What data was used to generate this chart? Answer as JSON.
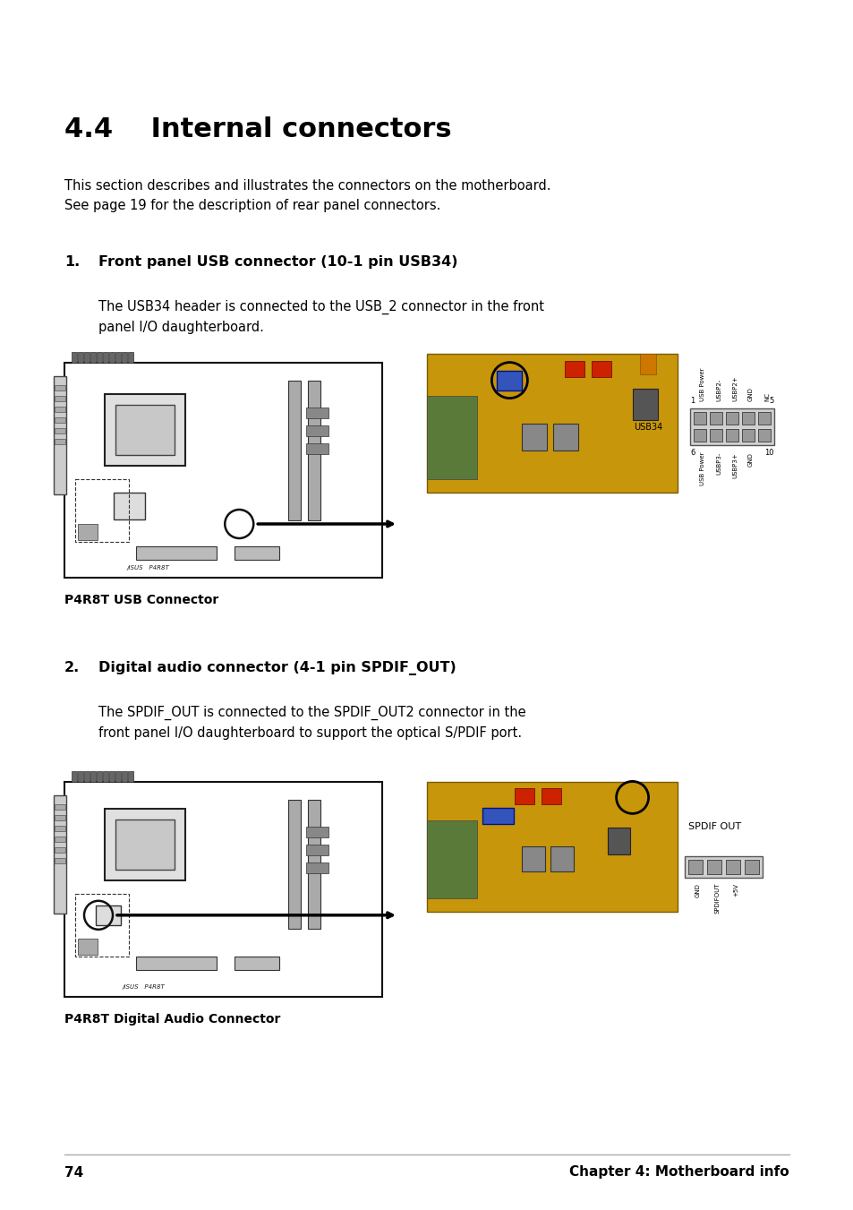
{
  "bg_color": "#ffffff",
  "page_width": 9.54,
  "page_height": 13.51,
  "title": "4.4    Internal connectors",
  "title_fontsize": 22,
  "intro_text": "This section describes and illustrates the connectors on the motherboard.\nSee page 19 for the description of rear panel connectors.",
  "intro_fontsize": 10.5,
  "section1_num": "1.",
  "section1_title": "Front panel USB connector (10-1 pin USB34)",
  "section1_title_fontsize": 11.5,
  "section1_body": "The USB34 header is connected to the USB_2 connector in the front\npanel I/O daughterboard.",
  "section1_body_fontsize": 10.5,
  "caption1": "P4R8T USB Connector",
  "section2_num": "2.",
  "section2_title": "Digital audio connector (4-1 pin SPDIF_OUT)",
  "section2_title_fontsize": 11.5,
  "section2_body": "The SPDIF_OUT is connected to the SPDIF_OUT2 connector in the\nfront panel I/O daughterboard to support the optical S/PDIF port.",
  "section2_body_fontsize": 10.5,
  "caption2": "P4R8T Digital Audio Connector",
  "footer_page": "74",
  "footer_chapter": "Chapter 4: Motherboard info",
  "footer_fontsize": 11
}
